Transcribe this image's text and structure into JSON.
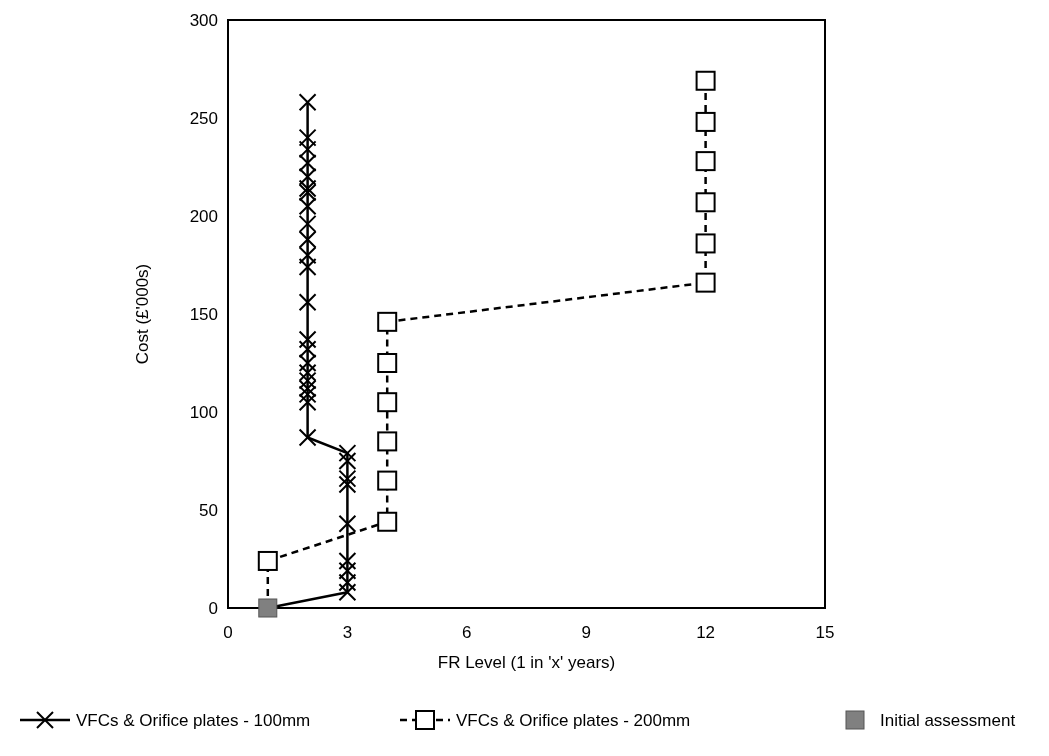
{
  "chart_data": {
    "type": "line",
    "xlabel": "FR Level (1 in 'x' years)",
    "ylabel": "Cost (£'000s)",
    "xlim": [
      0,
      15
    ],
    "xticks": [
      0,
      3,
      6,
      9,
      12,
      15
    ],
    "ylim": [
      0,
      300
    ],
    "yticks": [
      0,
      50,
      100,
      150,
      200,
      250,
      300
    ],
    "grid": false,
    "legend": "bottom",
    "series": [
      {
        "name": "VFCs & Orifice plates - 100mm",
        "color": "#000000",
        "marker": "cross",
        "line_style": "solid",
        "x": [
          1,
          3,
          3,
          3,
          3,
          3,
          3,
          3,
          3,
          3,
          2,
          2,
          2,
          2,
          2,
          2,
          2,
          2,
          2,
          2,
          2,
          2,
          2,
          2,
          2,
          2,
          2,
          2,
          2,
          2,
          2,
          2
        ],
        "values": [
          0,
          8,
          13,
          19,
          24,
          43,
          63,
          66,
          75,
          79,
          87,
          105,
          109,
          112,
          116,
          120,
          125,
          132,
          137,
          156,
          174,
          180,
          188,
          196,
          205,
          212,
          214,
          220,
          227,
          234,
          240,
          258
        ]
      },
      {
        "name": "VFCs & Orifice plates - 200mm",
        "color": "#000000",
        "marker": "square",
        "line_style": "dashed",
        "x": [
          1,
          1,
          4,
          4,
          4,
          4,
          4,
          4,
          12,
          12,
          12,
          12,
          12,
          12
        ],
        "values": [
          0,
          24,
          44,
          65,
          85,
          105,
          125,
          146,
          166,
          186,
          207,
          228,
          248,
          269
        ]
      },
      {
        "name": "Initial assessment",
        "type": "scatter",
        "color": "#808080",
        "marker": "square",
        "x": [
          1
        ],
        "values": [
          0
        ]
      }
    ]
  }
}
